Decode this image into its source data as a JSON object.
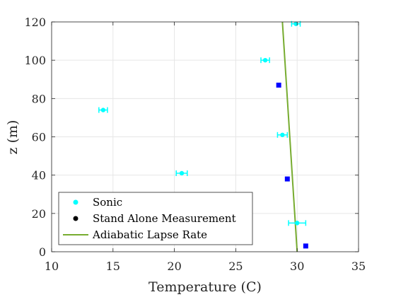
{
  "chart_data": {
    "type": "scatter",
    "xlabel": "Temperature (C)",
    "ylabel": "z (m)",
    "xlim": [
      10,
      35
    ],
    "ylim": [
      0,
      120
    ],
    "xticks": [
      "10",
      "15",
      "20",
      "25",
      "30",
      "35"
    ],
    "yticks": [
      "0",
      "20",
      "40",
      "60",
      "80",
      "100",
      "120"
    ],
    "grid": true,
    "legend_position": "bottom-left",
    "series": [
      {
        "name": "Sonic",
        "color": "#00FFFF",
        "marker": "circle-errorbar",
        "points": [
          {
            "x": 30.0,
            "y": 15,
            "xerr": 0.7
          },
          {
            "x": 20.6,
            "y": 41,
            "xerr": 0.45
          },
          {
            "x": 28.8,
            "y": 61,
            "xerr": 0.4
          },
          {
            "x": 14.2,
            "y": 74,
            "xerr": 0.35
          },
          {
            "x": 27.4,
            "y": 100,
            "xerr": 0.35
          },
          {
            "x": 29.9,
            "y": 119,
            "xerr": 0.35
          }
        ]
      },
      {
        "name": "Stand Alone Measurement",
        "color": "#0000FF",
        "legend_color": "#000000",
        "marker": "square",
        "points": [
          {
            "x": 30.7,
            "y": 3
          },
          {
            "x": 29.2,
            "y": 38
          },
          {
            "x": 28.5,
            "y": 87
          }
        ]
      },
      {
        "name": "Adiabatic Lapse Rate",
        "color": "#77AC30",
        "marker": "line",
        "points": [
          {
            "x": 30.0,
            "y": 0
          },
          {
            "x": 28.8,
            "y": 120
          }
        ]
      }
    ]
  }
}
